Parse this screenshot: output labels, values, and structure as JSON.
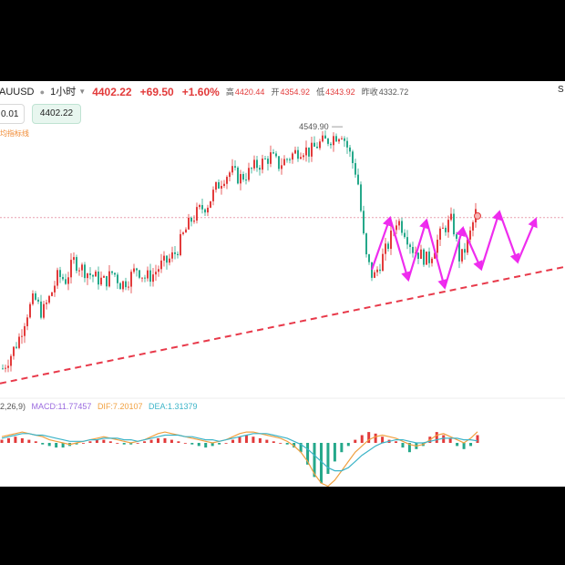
{
  "header": {
    "symbol": "AUUSD",
    "timeframe": "1小时",
    "last_price": "4402.22",
    "change": "+69.50",
    "change_pct": "+1.60%",
    "high_label": "高",
    "high_value": "4420.44",
    "open_label": "开",
    "open_value": "4354.92",
    "low_label": "低",
    "low_value": "4343.92",
    "prev_label": "昨收",
    "prev_value": "4332.72"
  },
  "corner_label": "S",
  "order_panel": {
    "quantity_value": "0.01",
    "price_button_label": "4402.22"
  },
  "indicator_label": "均指标线",
  "macd_header": {
    "params": "2,26,9)",
    "macd": "MACD:11.77457",
    "dif": "DIF:7.20107",
    "dea": "DEA:1.31379"
  },
  "colors": {
    "up": "#e23b3b",
    "down": "#25a88a",
    "trendline": "#e8394a",
    "zigzag": "#ee22ee",
    "dif": "#f0a040",
    "dea": "#3cb4c8",
    "macd_label": "#9a6adf"
  },
  "chart_data": {
    "type": "candlestick",
    "annotation_high": "4549.90",
    "price_range": [
      4120,
      4600
    ],
    "reference_price": 4402.22,
    "price_path": [
      4150,
      4172,
      4198,
      4240,
      4268,
      4242,
      4270,
      4305,
      4298,
      4330,
      4318,
      4308,
      4300,
      4295,
      4312,
      4290,
      4300,
      4318,
      4302,
      4306,
      4322,
      4330,
      4345,
      4376,
      4400,
      4415,
      4425,
      4450,
      4470,
      4480,
      4468,
      4475,
      4488,
      4495,
      4505,
      4490,
      4500,
      4510,
      4518,
      4512,
      4525,
      4530,
      4538,
      4545,
      4510,
      4470,
      4340,
      4300,
      4330,
      4360,
      4400,
      4380,
      4350,
      4340,
      4330,
      4360,
      4385,
      4398,
      4330,
      4360,
      4410
    ],
    "zigzag_prices": [
      4315,
      4402,
      4298,
      4398,
      4285,
      4385,
      4316,
      4412,
      4328,
      4400
    ],
    "zigzag_last_real_index": 6,
    "trendline_prices": [
      4125,
      4320
    ],
    "macd": {
      "histogram": [
        2,
        3,
        4,
        3,
        2,
        1,
        -1,
        -2,
        -3,
        -3,
        -2,
        -1,
        0,
        1,
        2,
        2,
        1,
        0,
        -1,
        -1,
        0,
        1,
        2,
        3,
        3,
        2,
        1,
        0,
        -1,
        -2,
        -3,
        -2,
        -1,
        0,
        2,
        4,
        5,
        4,
        3,
        2,
        1,
        0,
        -1,
        -3,
        -6,
        -14,
        -22,
        -26,
        -20,
        -12,
        -6,
        -2,
        2,
        5,
        7,
        6,
        4,
        2,
        1,
        -3,
        -6,
        -4,
        -2,
        4,
        7,
        5,
        3,
        -2,
        -4,
        -2,
        5
      ],
      "dif": [
        4,
        5,
        6,
        7,
        6,
        5,
        4,
        2,
        1,
        0,
        -1,
        0,
        1,
        2,
        3,
        4,
        3,
        2,
        1,
        0,
        1,
        2,
        4,
        6,
        7,
        6,
        5,
        4,
        3,
        2,
        1,
        0,
        1,
        2,
        4,
        6,
        7,
        7,
        6,
        5,
        4,
        3,
        1,
        -2,
        -6,
        -12,
        -20,
        -26,
        -28,
        -24,
        -18,
        -12,
        -6,
        -2,
        2,
        4,
        5,
        4,
        3,
        1,
        -1,
        -2,
        -1,
        2,
        5,
        6,
        4,
        2,
        0,
        3,
        7.2
      ],
      "dea": [
        3,
        4,
        5,
        6,
        6,
        5,
        5,
        4,
        3,
        2,
        1,
        1,
        1,
        2,
        2,
        3,
        3,
        3,
        2,
        2,
        1,
        2,
        3,
        4,
        5,
        5,
        5,
        4,
        4,
        3,
        2,
        2,
        1,
        2,
        3,
        4,
        5,
        6,
        6,
        6,
        5,
        4,
        3,
        1,
        -1,
        -4,
        -8,
        -12,
        -16,
        -18,
        -18,
        -16,
        -12,
        -8,
        -5,
        -2,
        0,
        1,
        2,
        2,
        1,
        0,
        0,
        1,
        2,
        3,
        3,
        3,
        2,
        2,
        1.3
      ]
    }
  }
}
